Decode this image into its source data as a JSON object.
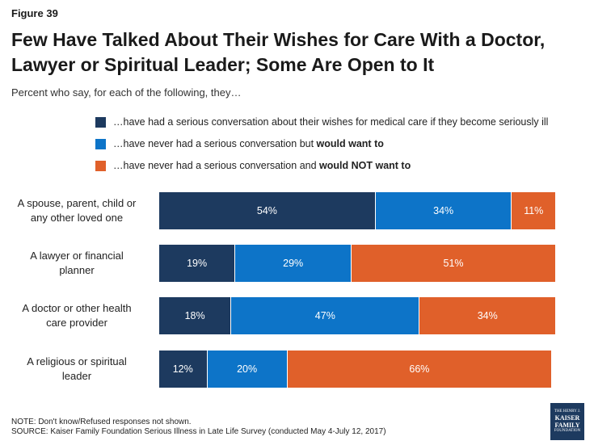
{
  "figure_label": "Figure 39",
  "title": "Few Have Talked About Their Wishes for Care With a Doctor, Lawyer or Spiritual Leader; Some Are Open to It",
  "subtitle": "Percent who say, for each of the following, they…",
  "legend": [
    {
      "prefix": "…have had a serious conversation about their wishes for medical care if they become seriously ill",
      "bold": "",
      "color": "#1d3a5f"
    },
    {
      "prefix": "…have never had a serious conversation but ",
      "bold": "would want to",
      "color": "#0d74c8"
    },
    {
      "prefix": "…have never had a serious conversation and ",
      "bold": "would NOT want to",
      "color": "#e0602a"
    }
  ],
  "chart_data": {
    "type": "bar",
    "orientation": "horizontal",
    "stacked": true,
    "categories": [
      "A spouse, parent, child or any other loved one",
      "A lawyer or financial planner",
      "A doctor or other health care provider",
      "A religious or spiritual leader"
    ],
    "series": [
      {
        "name": "…have had a serious conversation about their wishes for medical care if they become seriously ill",
        "values": [
          54,
          19,
          18,
          12
        ],
        "labels": [
          "54%",
          "19%",
          "18%",
          "12%"
        ],
        "color": "#1d3a5f"
      },
      {
        "name": "…have never had a serious conversation but would want to",
        "values": [
          34,
          29,
          47,
          20
        ],
        "labels": [
          "34%",
          "29%",
          "47%",
          "20%"
        ],
        "color": "#0d74c8"
      },
      {
        "name": "…have never had a serious conversation and would NOT want to",
        "values": [
          11,
          51,
          34,
          66
        ],
        "labels": [
          "11%",
          "51%",
          "34%",
          "66%"
        ],
        "color": "#e0602a"
      }
    ],
    "xlim": [
      0,
      100
    ]
  },
  "category_lines": [
    [
      "A spouse, parent, child or",
      "any other loved one"
    ],
    [
      "A lawyer or financial",
      "planner"
    ],
    [
      "A doctor or other health",
      "care provider"
    ],
    [
      "A religious or spiritual",
      "leader"
    ]
  ],
  "note": "NOTE: Don't know/Refused responses not shown.",
  "source": "SOURCE: Kaiser Family Foundation Serious Illness in Late Life Survey (conducted May 4-July 12, 2017)",
  "logo": {
    "line1": "THE HENRY J.",
    "line2": "KAISER",
    "line3": "FAMILY",
    "line4": "FOUNDATION"
  }
}
